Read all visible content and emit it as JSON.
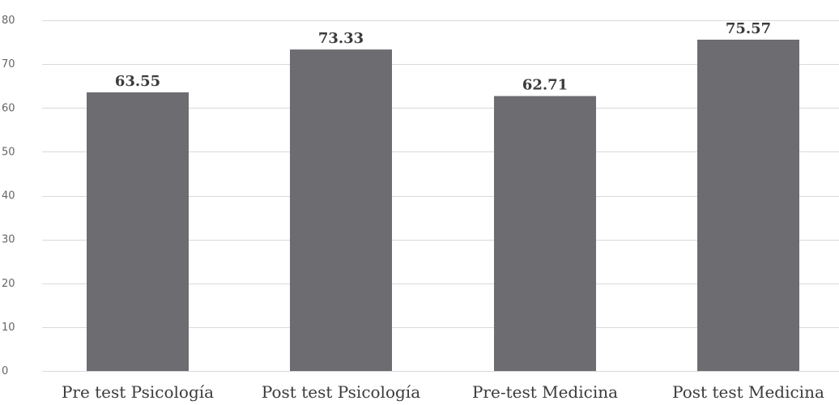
{
  "chart_data": {
    "type": "bar",
    "categories": [
      "Pre test Psicología",
      "Post test Psicología",
      "Pre-test Medicina",
      "Post test Medicina"
    ],
    "values": [
      63.55,
      73.33,
      62.71,
      75.57
    ],
    "data_labels": [
      "63.55",
      "73.33",
      "62.71",
      "75.57"
    ],
    "title": "",
    "xlabel": "",
    "ylabel": "",
    "ylim": [
      0,
      80
    ],
    "yticks": [
      0,
      10,
      20,
      30,
      40,
      50,
      60,
      70,
      80
    ],
    "grid": true,
    "legend": "none",
    "colors": {
      "bar": "#6d6c71",
      "grid": "#d9d9d9",
      "axis_text": "#666666",
      "label_text": "#3b3b3b"
    }
  }
}
